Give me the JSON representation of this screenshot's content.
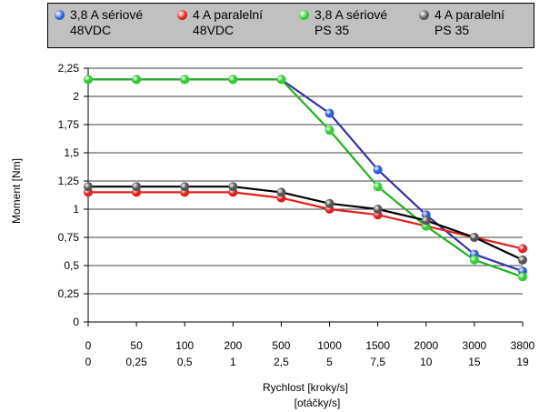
{
  "chart_data": {
    "type": "line",
    "xlabel": "Rychlost [kroky/s]",
    "xlabel2": "[otáčky/s]",
    "ylabel": "Moment [Nm]",
    "ylim": [
      0,
      2.25
    ],
    "yticks": [
      "0",
      "0,25",
      "0,5",
      "0,75",
      "1",
      "1,25",
      "1,5",
      "1,75",
      "2",
      "2,25"
    ],
    "categories": [
      "0",
      "50",
      "100",
      "200",
      "500",
      "1000",
      "1500",
      "2000",
      "3000",
      "3800"
    ],
    "categories2": [
      "0",
      "0,25",
      "0,5",
      "1",
      "2,5",
      "5",
      "7,5",
      "10",
      "15",
      "19"
    ],
    "grid": "horizontal",
    "legend_position": "top",
    "series": [
      {
        "name": "3,8 A sériové 48VDC",
        "name_line1": "3,8 A sériové",
        "name_line2": "48VDC",
        "color": "#3535a5",
        "dot": "#2b5cd8",
        "values": [
          2.15,
          2.15,
          2.15,
          2.15,
          2.15,
          1.85,
          1.35,
          0.95,
          0.6,
          0.45
        ]
      },
      {
        "name": "4 A paralelní 48VDC",
        "name_line1": "4 A paralelní",
        "name_line2": "48VDC",
        "color": "#e0201c",
        "dot": "#e0201c",
        "values": [
          1.15,
          1.15,
          1.15,
          1.15,
          1.1,
          1.0,
          0.95,
          0.85,
          0.75,
          0.65
        ]
      },
      {
        "name": "3,8 A sériové PS 35",
        "name_line1": "3,8 A sériové",
        "name_line2": "PS 35",
        "color": "#20b020",
        "dot": "#33cc33",
        "values": [
          2.15,
          2.15,
          2.15,
          2.15,
          2.15,
          1.7,
          1.2,
          0.85,
          0.55,
          0.4
        ]
      },
      {
        "name": "4 A paralelní PS 35",
        "name_line1": "4 A paralelní",
        "name_line2": "PS 35",
        "color": "#000000",
        "dot": "#555555",
        "values": [
          1.2,
          1.2,
          1.2,
          1.2,
          1.15,
          1.05,
          1.0,
          0.9,
          0.75,
          0.55
        ]
      }
    ]
  }
}
